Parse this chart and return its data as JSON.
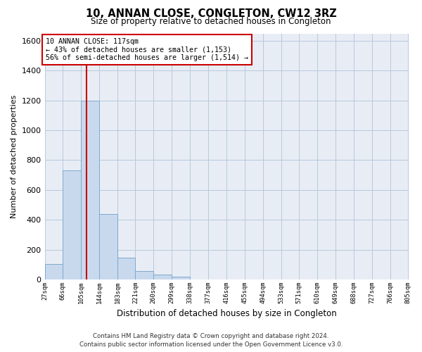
{
  "title": "10, ANNAN CLOSE, CONGLETON, CW12 3RZ",
  "subtitle": "Size of property relative to detached houses in Congleton",
  "xlabel": "Distribution of detached houses by size in Congleton",
  "ylabel": "Number of detached properties",
  "footer_line1": "Contains HM Land Registry data © Crown copyright and database right 2024.",
  "footer_line2": "Contains public sector information licensed under the Open Government Licence v3.0.",
  "bar_edges": [
    27,
    66,
    105,
    144,
    183,
    221,
    260,
    299,
    338,
    377,
    416,
    455,
    494,
    533,
    571,
    610,
    649,
    688,
    727,
    766,
    805
  ],
  "bar_heights": [
    105,
    730,
    1200,
    440,
    145,
    55,
    32,
    18,
    0,
    0,
    0,
    0,
    0,
    0,
    0,
    0,
    0,
    0,
    0,
    0
  ],
  "bar_color": "#c8d9ee",
  "bar_edge_color": "#7fa8cc",
  "grid_color": "#b8c8dc",
  "background_color": "#e8edf5",
  "vline_x": 117,
  "vline_color": "#cc0000",
  "annotation_line1": "10 ANNAN CLOSE: 117sqm",
  "annotation_line2": "← 43% of detached houses are smaller (1,153)",
  "annotation_line3": "56% of semi-detached houses are larger (1,514) →",
  "annotation_box_color": "#cc0000",
  "annotation_bg": "#ffffff",
  "ylim": [
    0,
    1650
  ],
  "yticks": [
    0,
    200,
    400,
    600,
    800,
    1000,
    1200,
    1400,
    1600
  ],
  "tick_labels": [
    "27sqm",
    "66sqm",
    "105sqm",
    "144sqm",
    "183sqm",
    "221sqm",
    "260sqm",
    "299sqm",
    "338sqm",
    "377sqm",
    "416sqm",
    "455sqm",
    "494sqm",
    "533sqm",
    "571sqm",
    "610sqm",
    "649sqm",
    "688sqm",
    "727sqm",
    "766sqm",
    "805sqm"
  ]
}
